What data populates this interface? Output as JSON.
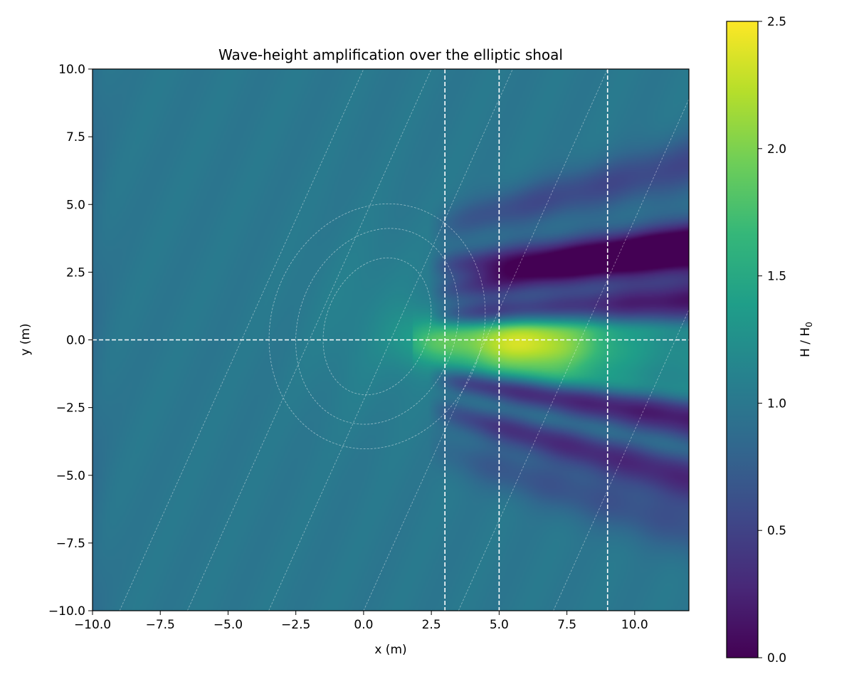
{
  "chart_data": {
    "type": "heatmap",
    "title": "Wave-height amplification over the elliptic shoal",
    "xlabel": "x (m)",
    "ylabel": "y (m)",
    "xlim": [
      -10,
      12
    ],
    "ylim": [
      -10,
      10
    ],
    "x_ticks": [
      -10,
      -7.5,
      -5,
      -2.5,
      0,
      2.5,
      5,
      7.5,
      10
    ],
    "x_tick_labels": [
      "−10.0",
      "−7.5",
      "−5.0",
      "−2.5",
      "0.0",
      "2.5",
      "5.0",
      "7.5",
      "10.0"
    ],
    "y_ticks": [
      -10,
      -7.5,
      -5,
      -2.5,
      0,
      2.5,
      5,
      7.5,
      10
    ],
    "y_tick_labels": [
      "−10.0",
      "−7.5",
      "−5.0",
      "−2.5",
      "0.0",
      "2.5",
      "5.0",
      "7.5",
      "10.0"
    ],
    "colorbar": {
      "label_main": "H / H",
      "label_sub": "0",
      "range": [
        0,
        2.5
      ],
      "ticks": [
        0,
        0.5,
        1.0,
        1.5,
        2.0,
        2.5
      ],
      "tick_labels": [
        "0.0",
        "0.5",
        "1.0",
        "1.5",
        "2.0",
        "2.5"
      ],
      "colormap": "viridis",
      "colormap_stops": [
        "#440154",
        "#482878",
        "#3e4989",
        "#31688e",
        "#26828e",
        "#1f9e89",
        "#35b779",
        "#6ece58",
        "#b5de2b",
        "#fde725"
      ]
    },
    "field": {
      "background_value": 1.0,
      "ridge_peak": 2.2,
      "ridge_peak_at": [
        5.9,
        -0.2
      ],
      "shadow_min": 0.0
    },
    "reference_lines": {
      "vertical_x": [
        3,
        5,
        9
      ],
      "horizontal_y": [
        0
      ],
      "style": "dashed",
      "color": "#ffffff"
    },
    "shoal": {
      "center": [
        0.5,
        0.5
      ],
      "contour_semi_axes": [
        [
          1.9,
          2.6
        ],
        [
          2.9,
          3.7
        ],
        [
          3.9,
          4.6
        ]
      ],
      "rotation_deg": 20
    },
    "depth_contours": {
      "slope_dx_per_dy": 0.45,
      "x_at_y0": [
        -4.5,
        -2.0,
        1.0,
        4.5,
        8.0,
        11.5
      ]
    }
  }
}
